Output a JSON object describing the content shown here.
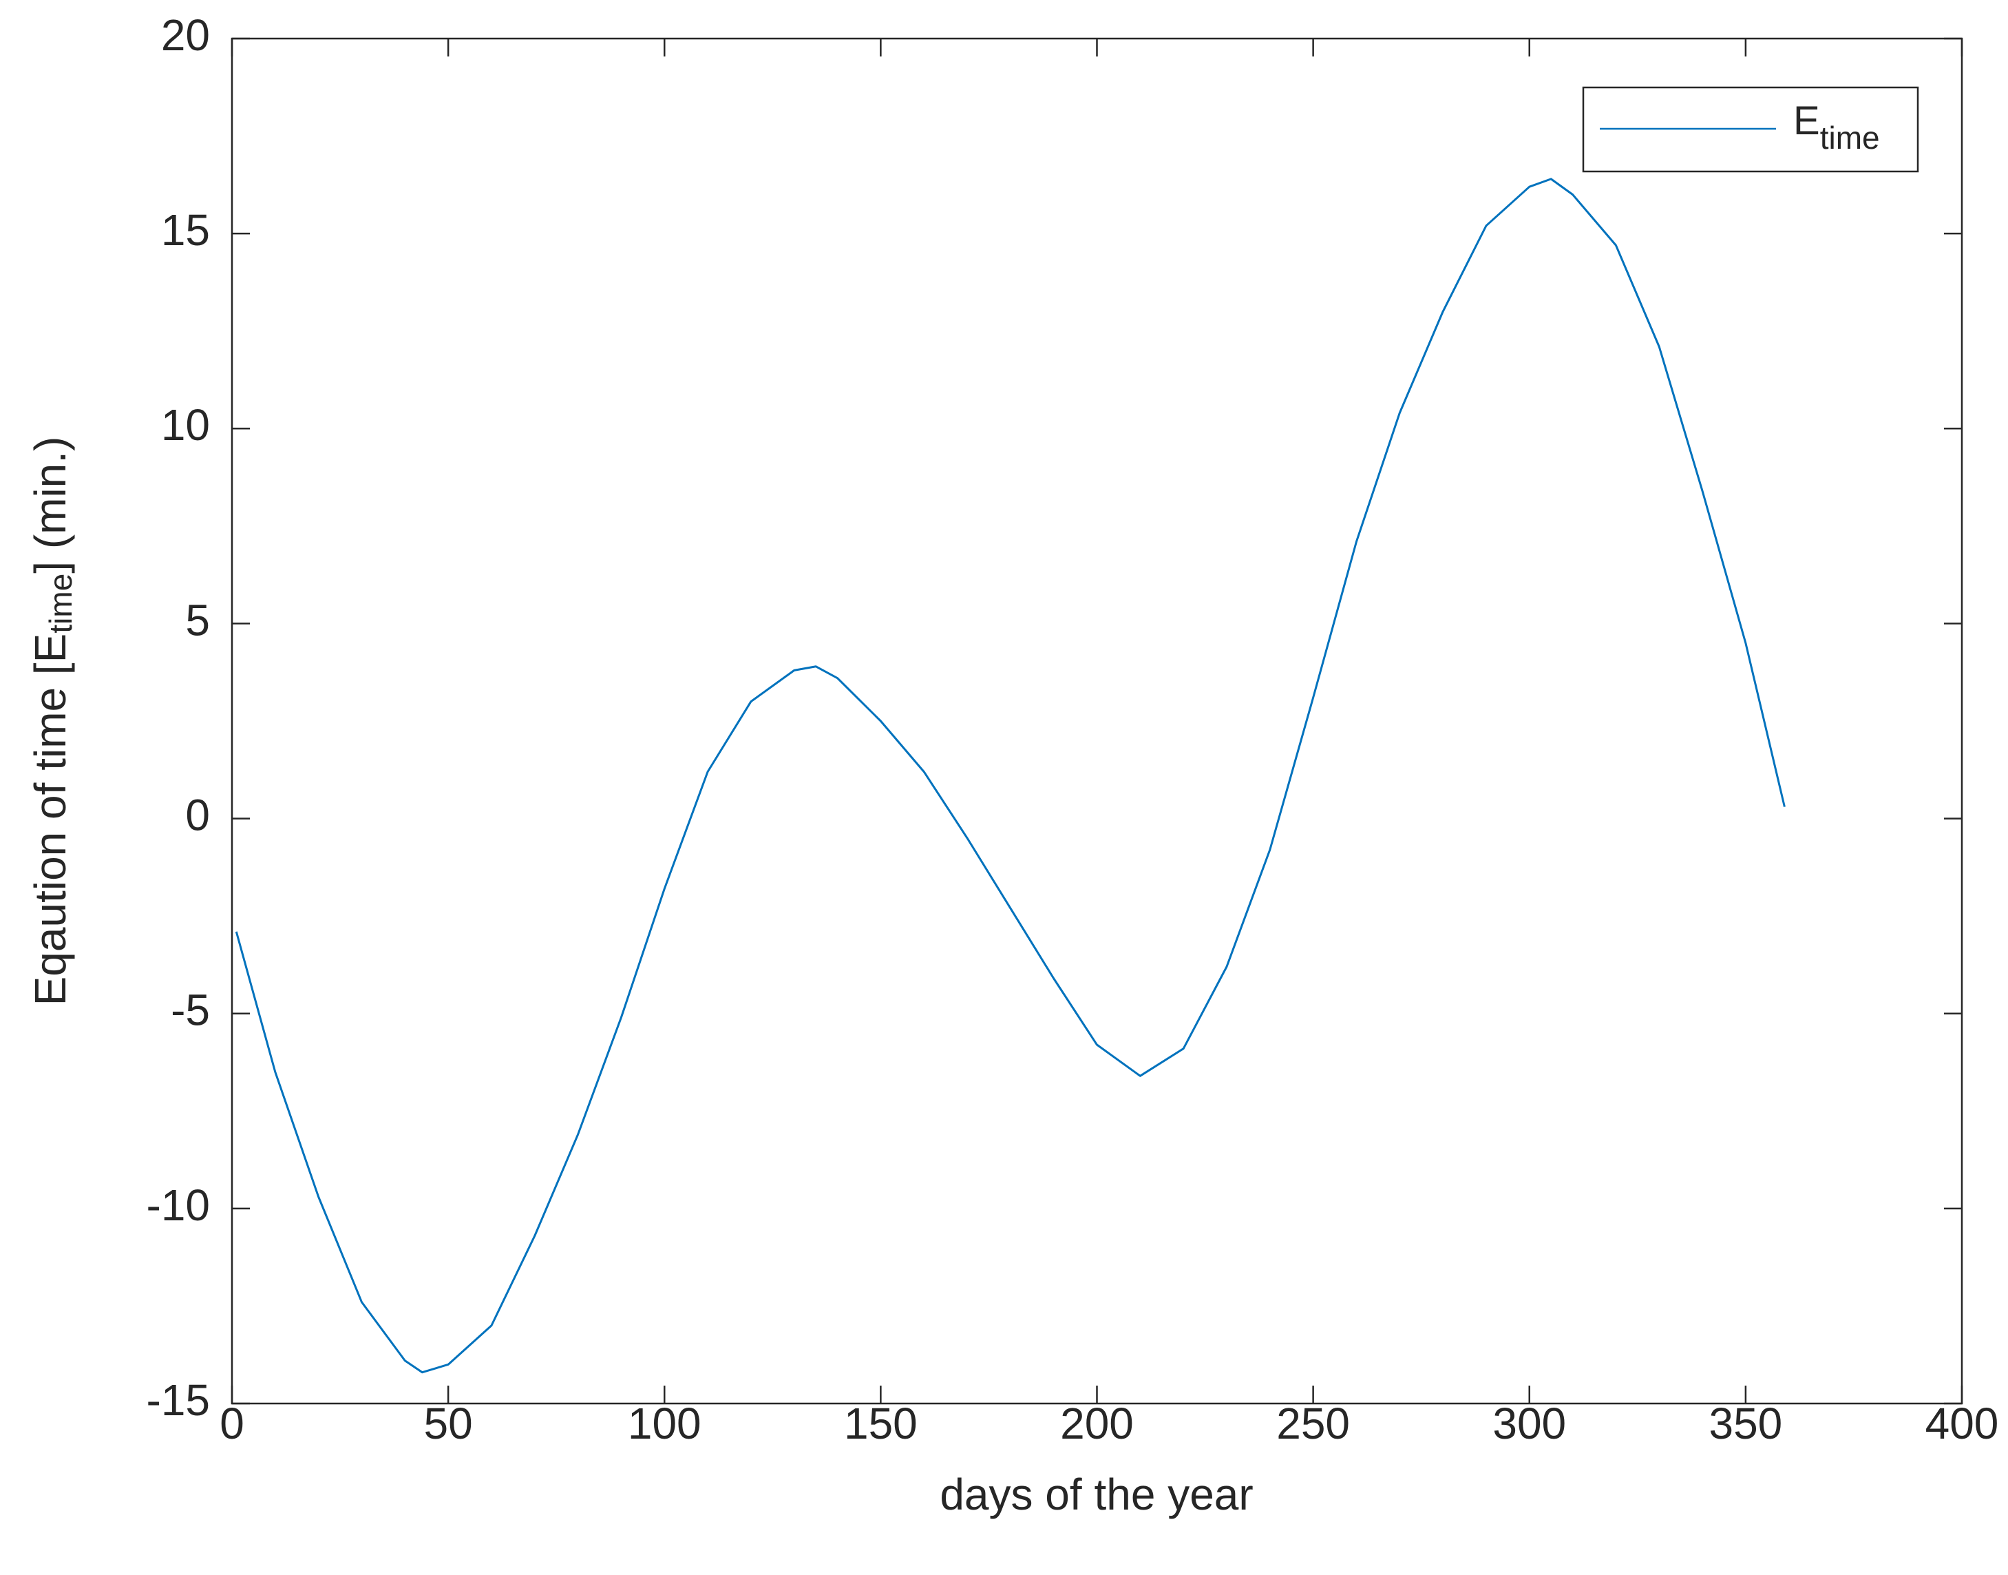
{
  "chart_data": {
    "type": "line",
    "xlabel": "days of the year",
    "ylabel": [
      "Eqaution of time [E",
      "time",
      "] (min.)"
    ],
    "x": [
      1,
      10,
      20,
      30,
      40,
      44,
      50,
      60,
      70,
      80,
      90,
      100,
      110,
      120,
      130,
      135,
      140,
      150,
      160,
      170,
      180,
      190,
      200,
      210,
      220,
      230,
      240,
      250,
      260,
      270,
      280,
      290,
      300,
      305,
      310,
      320,
      330,
      340,
      350,
      359
    ],
    "series": [
      {
        "name": "E",
        "name_sub": "time",
        "color": "#0072bd",
        "values": [
          -2.9,
          -6.5,
          -9.7,
          -12.4,
          -13.9,
          -14.2,
          -14.0,
          -13.0,
          -10.7,
          -8.1,
          -5.1,
          -1.8,
          1.2,
          3.0,
          3.8,
          3.9,
          3.6,
          2.5,
          1.2,
          -0.5,
          -2.3,
          -4.1,
          -5.8,
          -6.6,
          -5.9,
          -3.8,
          -0.8,
          3.1,
          7.1,
          10.4,
          13.0,
          15.2,
          16.2,
          16.4,
          16.0,
          14.7,
          12.1,
          8.4,
          4.5,
          0.3
        ]
      }
    ],
    "xlim": [
      0,
      400
    ],
    "xticks": [
      0,
      50,
      100,
      150,
      200,
      250,
      300,
      350,
      400
    ],
    "ylim": [
      -15,
      20
    ],
    "yticks": [
      -15,
      -10,
      -5,
      0,
      5,
      10,
      15,
      20
    ],
    "legend": "upper right",
    "grid": false
  }
}
